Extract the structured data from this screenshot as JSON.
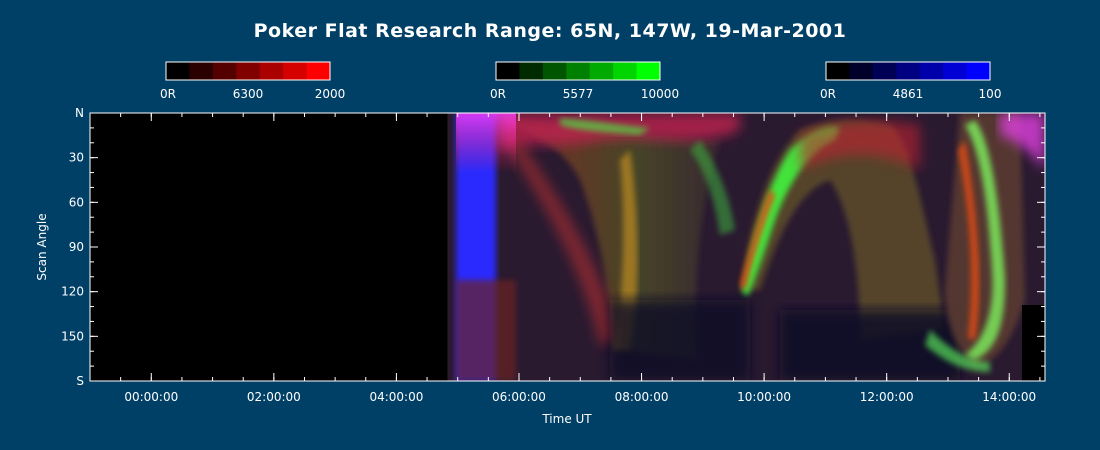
{
  "chart_data": {
    "type": "heatmap",
    "title": "Poker Flat Research Range: 65N, 147W, 19-Mar-2001",
    "xlabel": "Time UT",
    "ylabel": "Scan Angle",
    "x_range": [
      "23:00:00",
      "14:35:00"
    ],
    "x_ticks": [
      "00:00:00",
      "02:00:00",
      "04:00:00",
      "06:00:00",
      "08:00:00",
      "10:00:00",
      "12:00:00",
      "14:00:00"
    ],
    "y_ticks": [
      "N",
      "30",
      "60",
      "90",
      "120",
      "150",
      "S"
    ],
    "y_range": [
      0,
      180
    ],
    "data_start": "04:50:00",
    "colorbars": [
      {
        "channel": "red",
        "wavelength": "6300",
        "min_label": "0R",
        "max_label": "2000",
        "color": "#ff0000"
      },
      {
        "channel": "green",
        "wavelength": "5577",
        "min_label": "0R",
        "max_label": "10000",
        "color": "#00ff00"
      },
      {
        "channel": "blue",
        "wavelength": "4861",
        "min_label": "0R",
        "max_label": "100",
        "color": "#0000ff"
      }
    ],
    "colors": {
      "background": "#003f66",
      "no_data": "#000000"
    }
  }
}
